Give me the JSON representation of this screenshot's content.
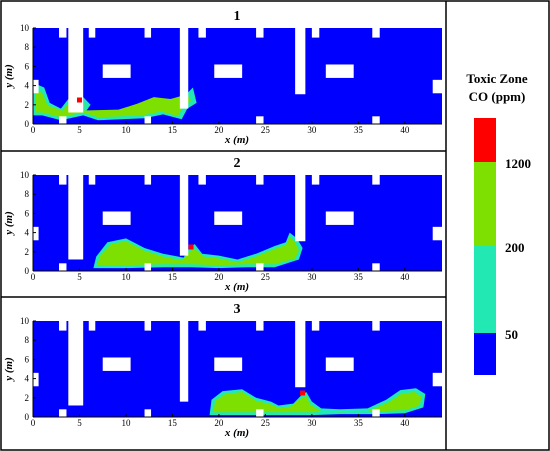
{
  "chart_data": {
    "type": "heatmap",
    "panels": [
      {
        "title": "1",
        "source_x": 5,
        "source_y": 2.5
      },
      {
        "title": "2",
        "source_x": 17,
        "source_y": 2.5
      },
      {
        "title": "3",
        "source_x": 29,
        "source_y": 2.5
      }
    ],
    "xlabel": "x (m)",
    "ylabel": "y (m)",
    "xlim": [
      0,
      44
    ],
    "ylim": [
      0,
      10
    ],
    "xticks": [
      "0",
      "5",
      "10",
      "15",
      "20",
      "25",
      "30",
      "35",
      "40"
    ],
    "yticks": [
      "0",
      "2",
      "4",
      "6",
      "8",
      "10"
    ],
    "legend": {
      "title_line1": "Toxic Zone",
      "title_line2": "CO (ppm)",
      "levels": [
        "50",
        "200",
        "1200"
      ],
      "colors": [
        "#0000ff",
        "#22e8b4",
        "#7ee000",
        "#ff0000"
      ],
      "placement": "right"
    },
    "colors": {
      "background": "#0000ff",
      "band_200": "#22e8b4",
      "band_1200": "#7ee000",
      "source": "#ff0000"
    }
  }
}
